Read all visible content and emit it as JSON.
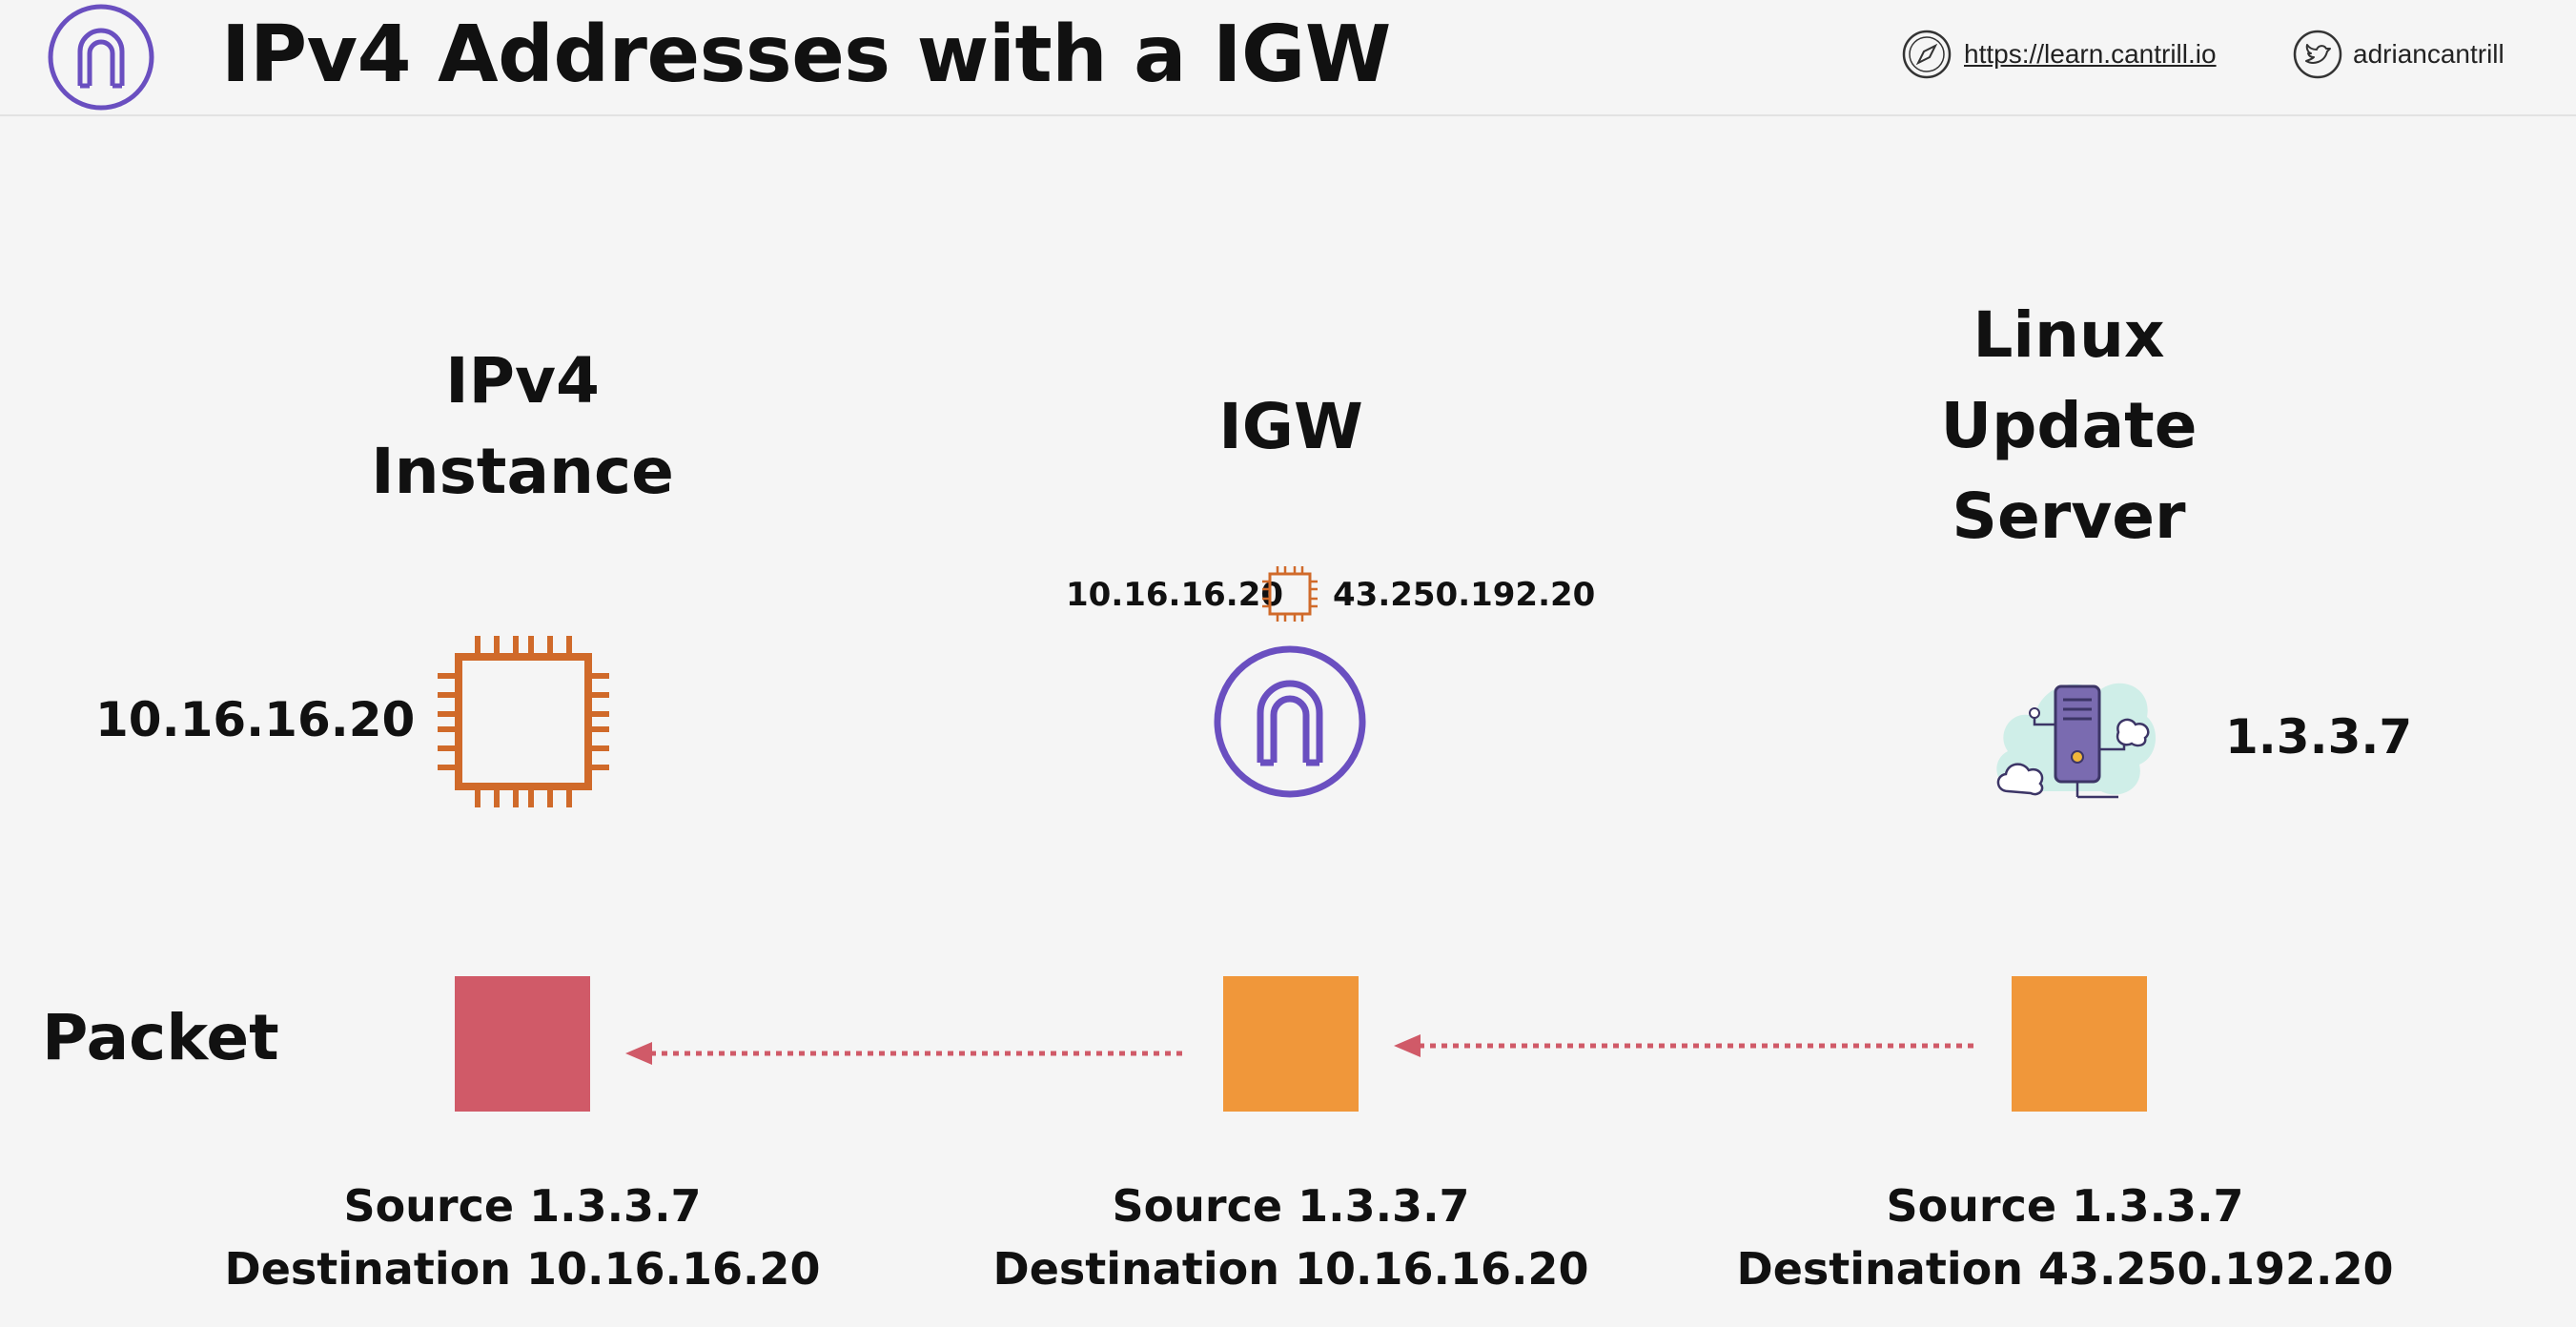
{
  "header": {
    "title": "IPv4 Addresses with a IGW",
    "website": "https://learn.cantrill.io",
    "twitter": "adriancantrill"
  },
  "columns": {
    "instance": {
      "title_line1": "IPv4",
      "title_line2": "Instance",
      "ip": "10.16.16.20"
    },
    "igw": {
      "title": "IGW",
      "private_ip": "10.16.16.20",
      "public_ip": "43.250.192.20"
    },
    "server": {
      "title_line1": "Linux",
      "title_line2": "Update",
      "title_line3": "Server",
      "ip": "1.3.3.7"
    }
  },
  "packet_row": {
    "label": "Packet"
  },
  "packets": [
    {
      "source_label": "Source",
      "source": "1.3.3.7",
      "dest_label": "Destination",
      "destination": "10.16.16.20",
      "color": "#d05a68"
    },
    {
      "source_label": "Source",
      "source": "1.3.3.7",
      "dest_label": "Destination",
      "destination": "10.16.16.20",
      "color": "#f0973a"
    },
    {
      "source_label": "Source",
      "source": "1.3.3.7",
      "dest_label": "Destination",
      "destination": "43.250.192.20",
      "color": "#f0973a"
    }
  ],
  "colors": {
    "purple": "#6a4fc0",
    "chip_orange": "#d06a2a",
    "packet_red": "#d05a68",
    "packet_orange": "#f0973a",
    "arrow": "#d05a68"
  }
}
